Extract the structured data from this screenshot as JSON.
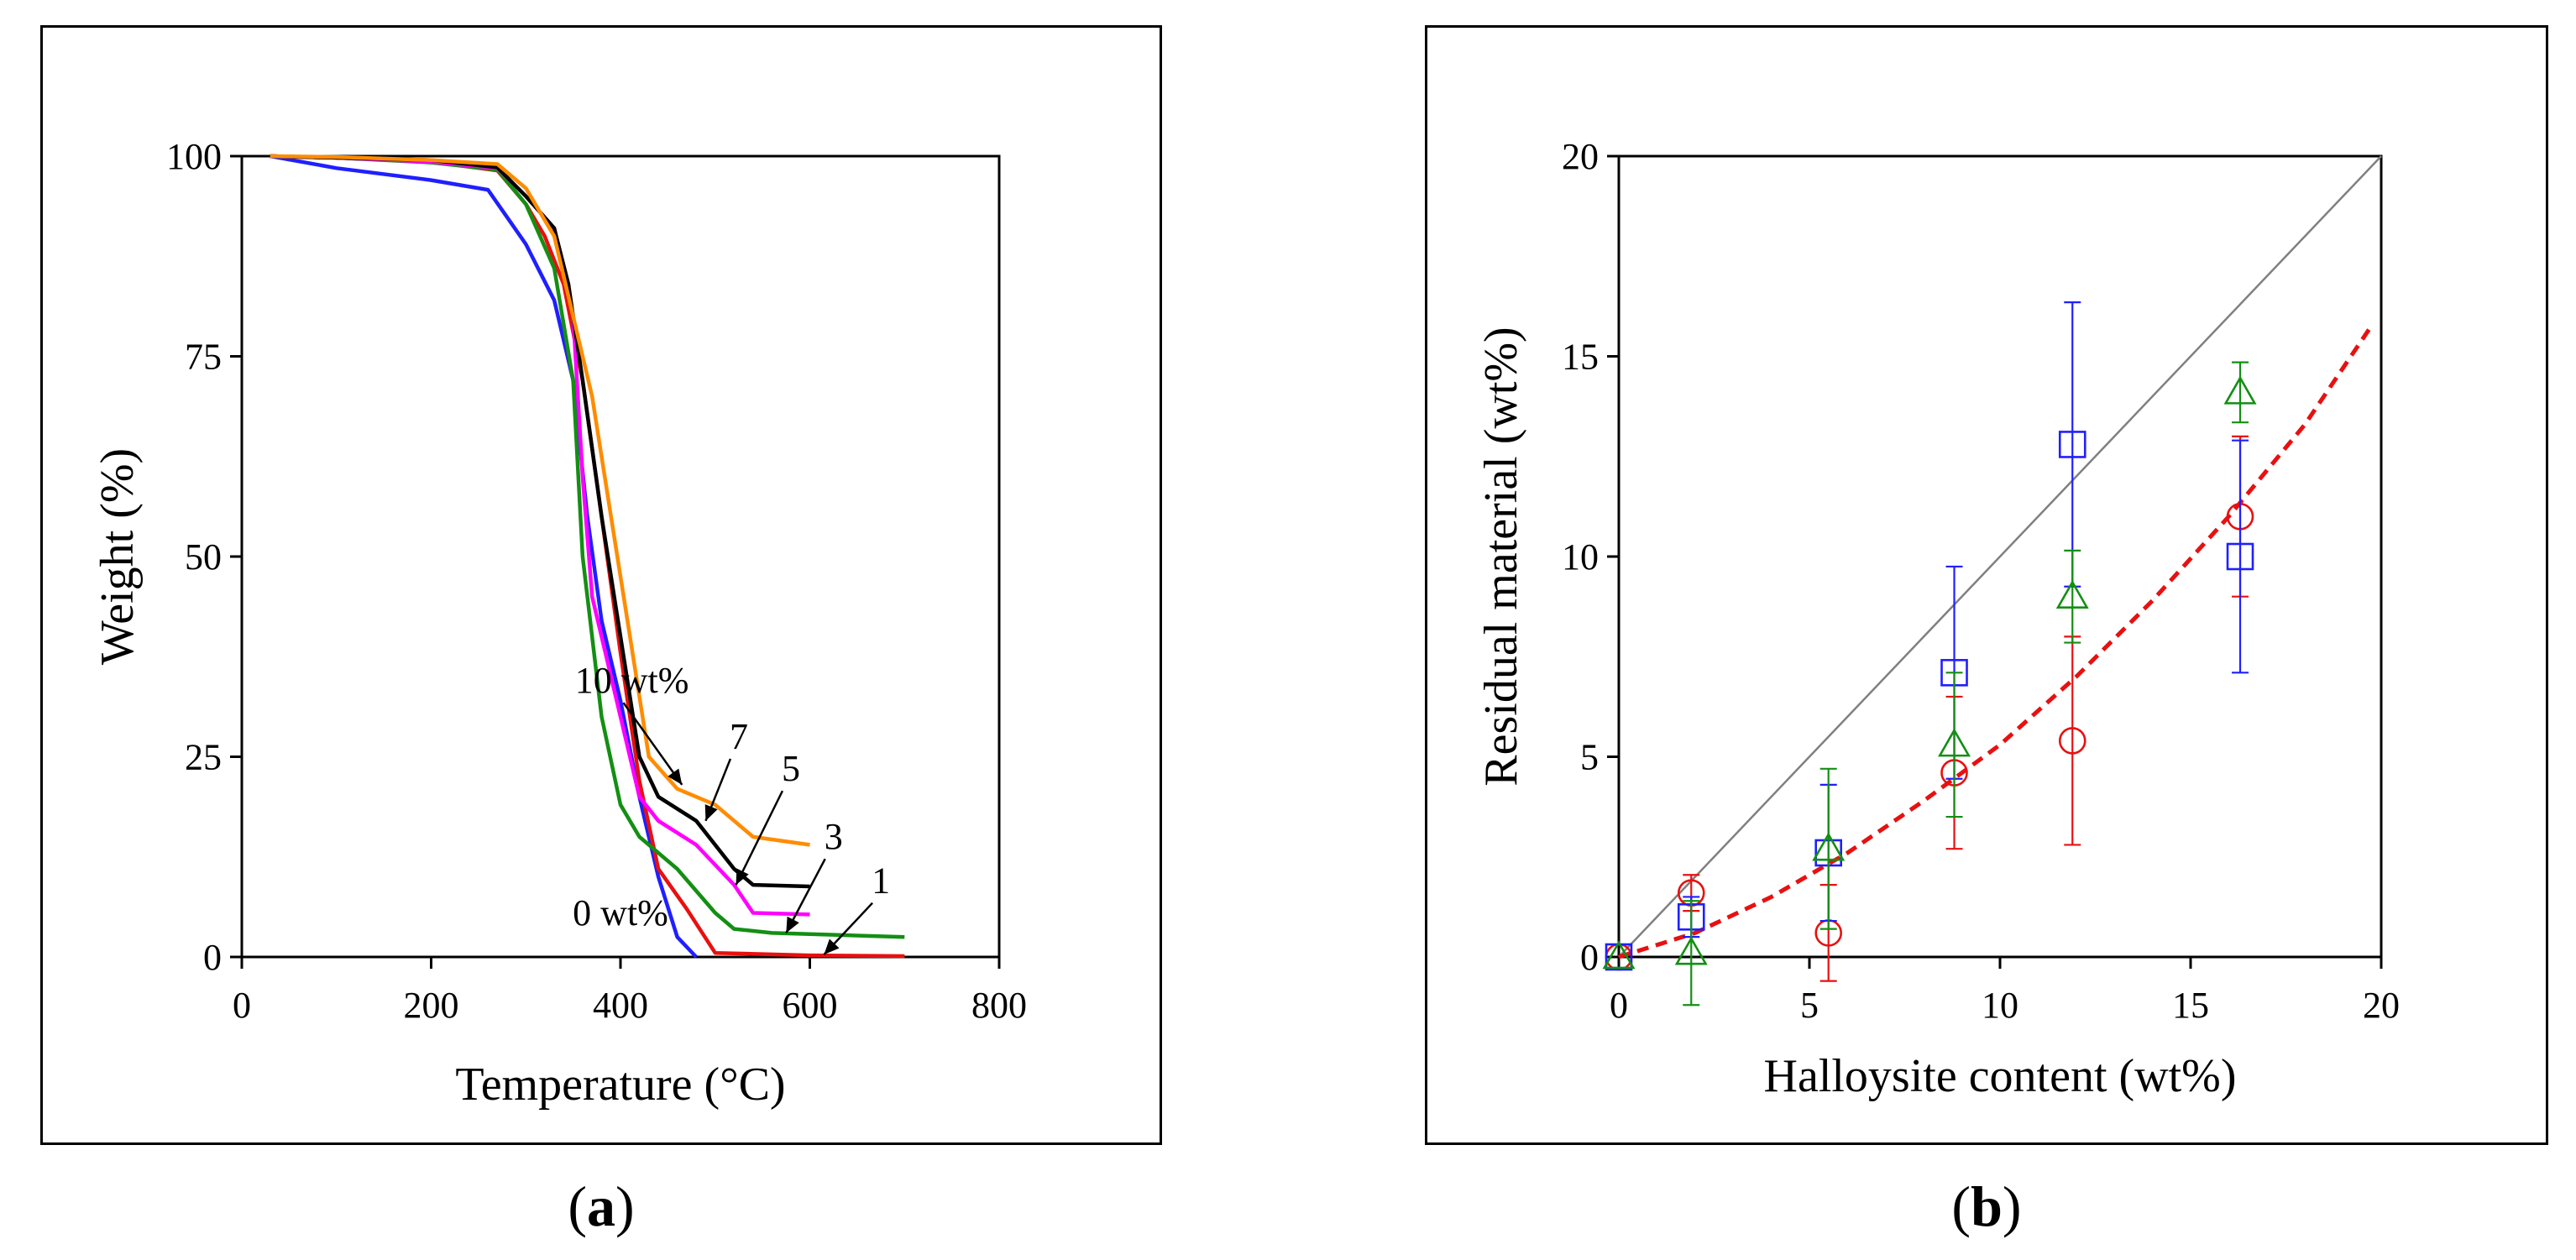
{
  "chart_data": [
    {
      "type": "line",
      "panel": "a",
      "caption_letter": "a",
      "xlabel": "Temperature (°C)",
      "ylabel": "Weight (%)",
      "xlim": [
        0,
        800
      ],
      "ylim": [
        0,
        100
      ],
      "xticks": [
        "0",
        "200",
        "400",
        "600",
        "800"
      ],
      "yticks": [
        "0",
        "25",
        "50",
        "75",
        "100"
      ],
      "series": [
        {
          "name": "0 wt%",
          "color": "#1f1fff",
          "points": [
            [
              30,
              100
            ],
            [
              100,
              98.5
            ],
            [
              200,
              97
            ],
            [
              260,
              95.8
            ],
            [
              300,
              89
            ],
            [
              330,
              82
            ],
            [
              350,
              72
            ],
            [
              365,
              55
            ],
            [
              380,
              42
            ],
            [
              400,
              32
            ],
            [
              420,
              20
            ],
            [
              440,
              10
            ],
            [
              460,
              2.5
            ],
            [
              480,
              0
            ]
          ]
        },
        {
          "name": "1",
          "color": "#e81010",
          "points": [
            [
              30,
              100
            ],
            [
              100,
              99.8
            ],
            [
              200,
              99.3
            ],
            [
              270,
              98.2
            ],
            [
              300,
              94
            ],
            [
              320,
              90
            ],
            [
              340,
              84
            ],
            [
              360,
              72
            ],
            [
              380,
              55
            ],
            [
              400,
              38
            ],
            [
              420,
              22
            ],
            [
              440,
              11
            ],
            [
              470,
              6
            ],
            [
              500,
              0.5
            ],
            [
              600,
              0.2
            ],
            [
              700,
              0.1
            ]
          ]
        },
        {
          "name": "3",
          "color": "#138f13",
          "points": [
            [
              30,
              100
            ],
            [
              100,
              99.8
            ],
            [
              200,
              99.2
            ],
            [
              270,
              98.3
            ],
            [
              300,
              94
            ],
            [
              330,
              86
            ],
            [
              350,
              72
            ],
            [
              360,
              50
            ],
            [
              380,
              30
            ],
            [
              400,
              19
            ],
            [
              420,
              15
            ],
            [
              460,
              11
            ],
            [
              500,
              5.5
            ],
            [
              520,
              3.5
            ],
            [
              560,
              3
            ],
            [
              700,
              2.5
            ]
          ]
        },
        {
          "name": "5",
          "color": "#ff00ff",
          "points": [
            [
              30,
              100
            ],
            [
              100,
              99.8
            ],
            [
              200,
              99.3
            ],
            [
              270,
              98.5
            ],
            [
              300,
              95
            ],
            [
              330,
              91
            ],
            [
              350,
              80
            ],
            [
              360,
              60
            ],
            [
              370,
              45
            ],
            [
              400,
              30
            ],
            [
              420,
              20
            ],
            [
              440,
              17
            ],
            [
              480,
              14
            ],
            [
              520,
              9
            ],
            [
              540,
              5.5
            ],
            [
              600,
              5.3
            ]
          ]
        },
        {
          "name": "7",
          "color": "#000000",
          "points": [
            [
              30,
              100
            ],
            [
              100,
              99.8
            ],
            [
              200,
              99.5
            ],
            [
              270,
              98.6
            ],
            [
              300,
              95
            ],
            [
              330,
              91
            ],
            [
              345,
              84
            ],
            [
              360,
              72
            ],
            [
              380,
              55
            ],
            [
              400,
              40
            ],
            [
              420,
              25
            ],
            [
              440,
              20
            ],
            [
              480,
              17
            ],
            [
              520,
              11
            ],
            [
              540,
              9
            ],
            [
              600,
              8.8
            ]
          ]
        },
        {
          "name": "10 wt%",
          "color": "#ff8c00",
          "points": [
            [
              30,
              100
            ],
            [
              100,
              99.9
            ],
            [
              200,
              99.5
            ],
            [
              270,
              99
            ],
            [
              300,
              96
            ],
            [
              330,
              90
            ],
            [
              350,
              80
            ],
            [
              370,
              70
            ],
            [
              390,
              55
            ],
            [
              410,
              40
            ],
            [
              430,
              25
            ],
            [
              460,
              21
            ],
            [
              500,
              19
            ],
            [
              540,
              15
            ],
            [
              600,
              14
            ]
          ]
        }
      ],
      "annotations": [
        {
          "label": "10 wt%",
          "label_x": 412,
          "label_y": 33,
          "target_x": 465,
          "target_y": 21.5
        },
        {
          "label": "7",
          "label_x": 525,
          "label_y": 26,
          "target_x": 490,
          "target_y": 17
        },
        {
          "label": "5",
          "label_x": 580,
          "label_y": 22,
          "target_x": 522,
          "target_y": 9
        },
        {
          "label": "3",
          "label_x": 625,
          "label_y": 13.5,
          "target_x": 575,
          "target_y": 3
        },
        {
          "label": "1",
          "label_x": 675,
          "label_y": 8,
          "target_x": 615,
          "target_y": 0.3
        },
        {
          "label": "0 wt%",
          "label_x": 400,
          "label_y": 4,
          "target_x": null,
          "target_y": null
        }
      ]
    },
    {
      "type": "scatter",
      "panel": "b",
      "caption_letter": "b",
      "xlabel": "Halloysite content (wt%)",
      "ylabel": "Residual material (wt%)",
      "xlim": [
        0,
        20
      ],
      "ylim": [
        0,
        20
      ],
      "xticks": [
        "0",
        "5",
        "10",
        "15",
        "20"
      ],
      "yticks": [
        "0",
        "5",
        "10",
        "15",
        "20"
      ],
      "reference_line": {
        "x": [
          0,
          20
        ],
        "y": [
          0,
          20
        ],
        "color": "#808080"
      },
      "fit_curve": {
        "color": "#e81010",
        "style": "dashed",
        "points": [
          [
            0,
            0
          ],
          [
            2,
            0.6
          ],
          [
            4,
            1.5
          ],
          [
            6,
            2.6
          ],
          [
            8,
            3.9
          ],
          [
            10,
            5.3
          ],
          [
            12,
            7.0
          ],
          [
            14,
            8.9
          ],
          [
            16,
            11.0
          ],
          [
            18,
            13.3
          ],
          [
            19.7,
            15.7
          ]
        ]
      },
      "series": [
        {
          "name": "circle",
          "marker": "circle",
          "color": "#e81010",
          "points": [
            {
              "x": 0,
              "y": 0,
              "err": 0
            },
            {
              "x": 1.9,
              "y": 1.6,
              "err": 0.45
            },
            {
              "x": 5.5,
              "y": 0.6,
              "err": 1.2
            },
            {
              "x": 8.8,
              "y": 4.6,
              "err": 1.9
            },
            {
              "x": 11.9,
              "y": 5.4,
              "err": 2.6
            },
            {
              "x": 16.3,
              "y": 11.0,
              "err": 2.0
            }
          ]
        },
        {
          "name": "square",
          "marker": "square",
          "color": "#1f1fff",
          "points": [
            {
              "x": 0,
              "y": 0,
              "err": 0
            },
            {
              "x": 1.9,
              "y": 1.0,
              "err": 0.5
            },
            {
              "x": 5.5,
              "y": 2.6,
              "err": 1.7
            },
            {
              "x": 8.8,
              "y": 7.1,
              "err": 2.65
            },
            {
              "x": 11.9,
              "y": 12.8,
              "err": 3.55
            },
            {
              "x": 16.3,
              "y": 10.0,
              "err": 2.9
            }
          ]
        },
        {
          "name": "triangle",
          "marker": "triangle",
          "color": "#138f13",
          "points": [
            {
              "x": 0,
              "y": 0,
              "err": 0
            },
            {
              "x": 1.9,
              "y": 0.1,
              "err": 1.3
            },
            {
              "x": 5.5,
              "y": 2.7,
              "err": 2.0
            },
            {
              "x": 8.8,
              "y": 5.3,
              "err": 1.8
            },
            {
              "x": 11.9,
              "y": 9.0,
              "err": 1.15
            },
            {
              "x": 16.3,
              "y": 14.1,
              "err": 0.75
            }
          ]
        }
      ]
    }
  ]
}
